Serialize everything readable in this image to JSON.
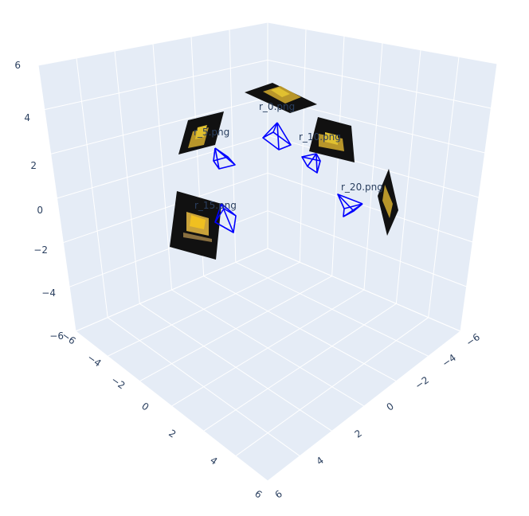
{
  "chart_data": {
    "type": "scatter3d",
    "axes": {
      "x": {
        "range": [
          -6,
          6
        ],
        "ticks": [
          "−6",
          "−4",
          "−2",
          "0",
          "2",
          "4",
          "6"
        ]
      },
      "y": {
        "range": [
          -6,
          6
        ],
        "ticks": [
          "−6",
          "−4",
          "−2",
          "0",
          "2",
          "4",
          "6"
        ]
      },
      "z": {
        "range": [
          -6,
          6
        ],
        "ticks": [
          "−6",
          "−4",
          "−2",
          "0",
          "2",
          "4",
          "6"
        ]
      }
    },
    "grid": true,
    "camera_color": "#0000ff",
    "pane_color": "#e5ecf6",
    "cameras": [
      {
        "label": "r_0.png",
        "icon": "camera-frustum-icon"
      },
      {
        "label": "r_5.png",
        "icon": "camera-frustum-icon"
      },
      {
        "label": "r_10.png",
        "icon": "camera-frustum-icon"
      },
      {
        "label": "r_15.png",
        "icon": "camera-frustum-icon"
      },
      {
        "label": "r_20.png",
        "icon": "camera-frustum-icon"
      }
    ]
  }
}
